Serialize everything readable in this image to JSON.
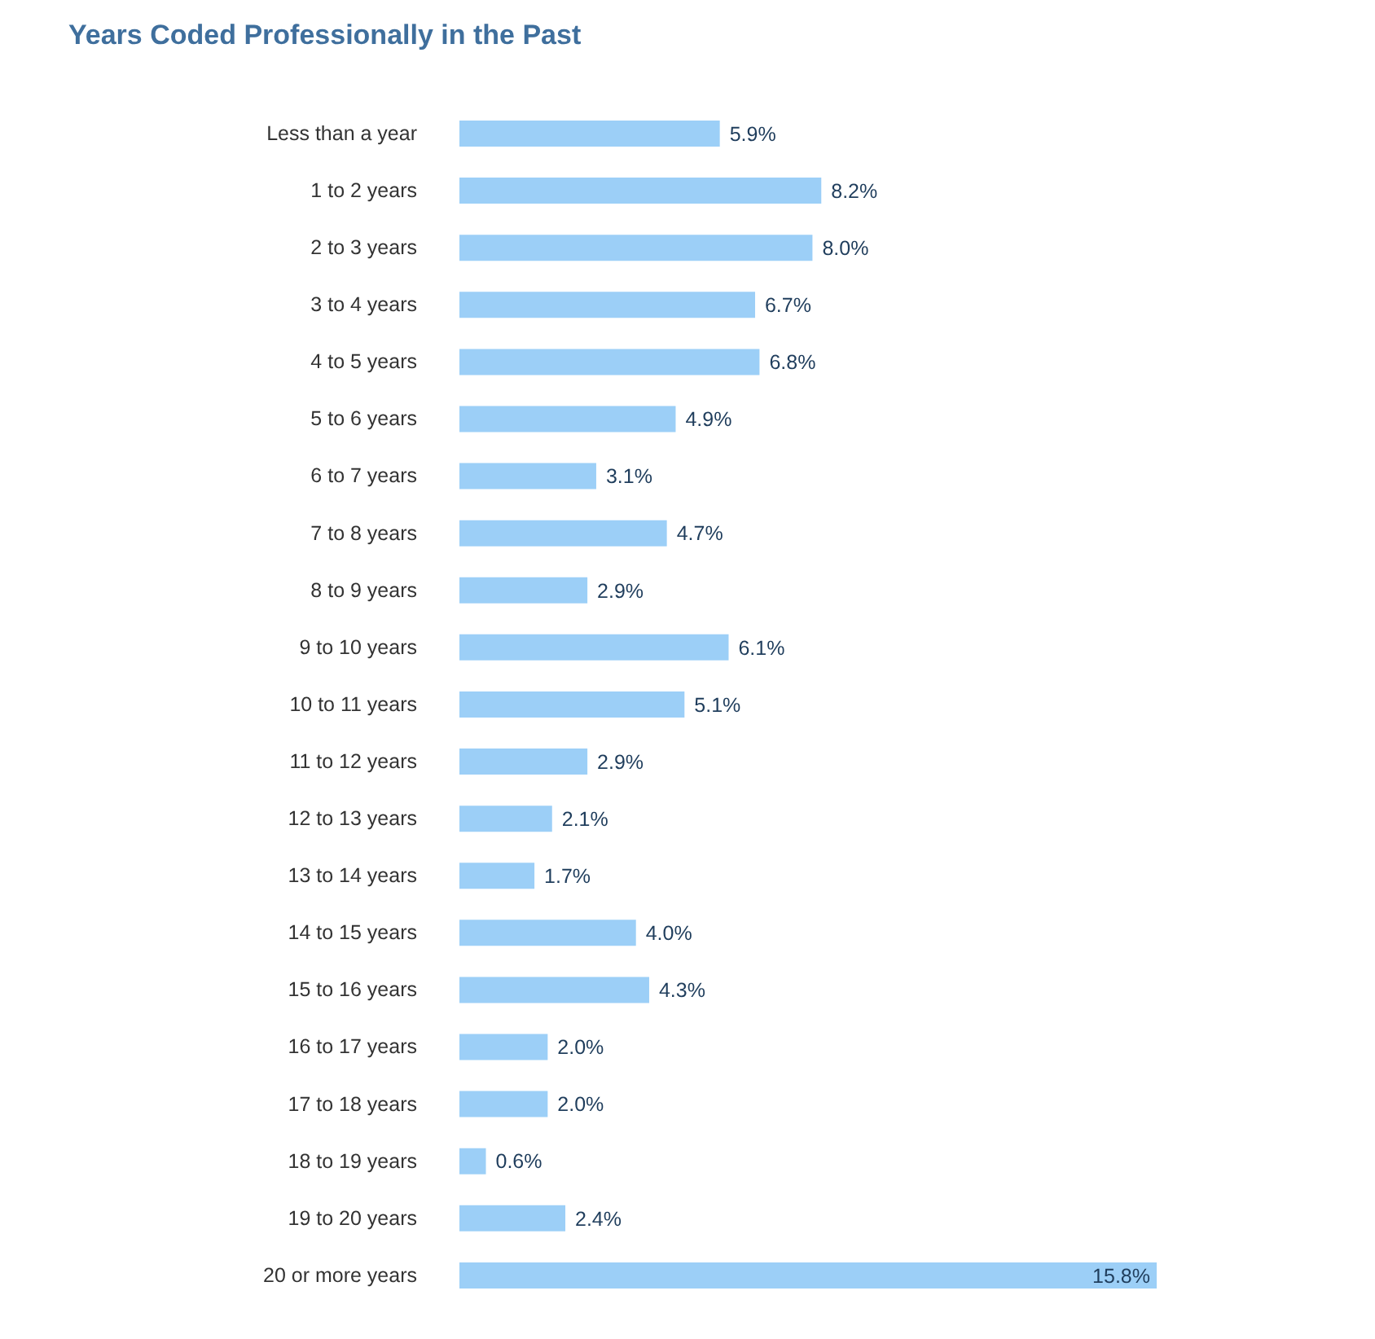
{
  "chart_data": {
    "type": "bar",
    "orientation": "horizontal",
    "title": "Years Coded Professionally in the Past",
    "categories": [
      "Less than a year",
      "1 to 2 years",
      "2 to 3 years",
      "3 to 4 years",
      "4 to 5 years",
      "5 to 6 years",
      "6 to 7 years",
      "7 to 8 years",
      "8 to 9 years",
      "9 to 10 years",
      "10 to 11 years",
      "11 to 12 years",
      "12 to 13 years",
      "13 to 14 years",
      "14 to 15 years",
      "15 to 16 years",
      "16 to 17 years",
      "17 to 18 years",
      "18 to 19 years",
      "19 to 20 years",
      "20 or more years"
    ],
    "values": [
      5.9,
      8.2,
      8.0,
      6.7,
      6.8,
      4.9,
      3.1,
      4.7,
      2.9,
      6.1,
      5.1,
      2.9,
      2.1,
      1.7,
      4.0,
      4.3,
      2.0,
      2.0,
      0.6,
      2.4,
      15.8
    ],
    "value_labels": [
      "5.9%",
      "8.2%",
      "8.0%",
      "6.7%",
      "6.8%",
      "4.9%",
      "3.1%",
      "4.7%",
      "2.9%",
      "6.1%",
      "5.1%",
      "2.9%",
      "2.1%",
      "1.7%",
      "4.0%",
      "4.3%",
      "2.0%",
      "2.0%",
      "0.6%",
      "2.4%",
      "15.8%"
    ],
    "color": "#9ccff7"
  }
}
